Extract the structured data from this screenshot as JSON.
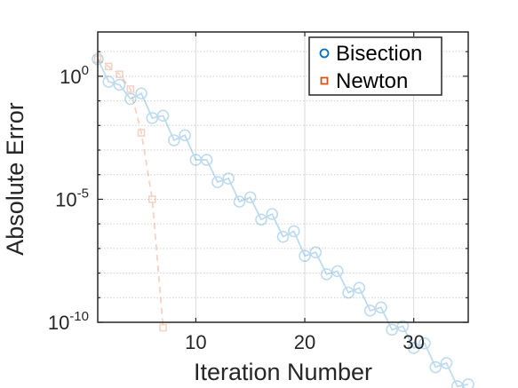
{
  "chart_data": {
    "type": "line",
    "xlabel": "Iteration Number",
    "ylabel": "Absolute Error",
    "xlim": [
      1,
      35
    ],
    "ylim_log10": [
      -10,
      1.8
    ],
    "yscale": "log",
    "grid": "on (x major solid, y minor dotted)",
    "legend_position": "top-right",
    "x_ticks": [
      10,
      20,
      30
    ],
    "x_tick_labels": [
      "10",
      "20",
      "30"
    ],
    "y_ticks_log10": [
      0,
      -5,
      -10
    ],
    "y_tick_labels": [
      {
        "base": "10",
        "exp": "0"
      },
      {
        "base": "10",
        "exp": "-5"
      },
      {
        "base": "10",
        "exp": "-10"
      }
    ],
    "series": [
      {
        "name": "Bisection",
        "color": "#0072BD",
        "marker": "circle",
        "line": "solid",
        "x": [
          1,
          2,
          3,
          4,
          5,
          6,
          7,
          8,
          9,
          10,
          11,
          12,
          13,
          14,
          15,
          16,
          17,
          18,
          19,
          20,
          21,
          22,
          23,
          24,
          25,
          26,
          27,
          28,
          29,
          30,
          31,
          32,
          33,
          34,
          35
        ],
        "y": [
          5,
          0.6,
          0.45,
          0.12,
          0.2,
          0.02,
          0.025,
          0.0025,
          0.004,
          0.0004,
          0.0004,
          5e-05,
          7e-05,
          8e-06,
          1.2e-05,
          1.5e-06,
          2.5e-06,
          3e-07,
          5e-07,
          5e-08,
          7e-08,
          9e-09,
          1.2e-08,
          1.6e-09,
          2.5e-09,
          3e-10,
          4e-10,
          5e-11,
          7e-11,
          9e-12,
          1.4e-11,
          1.5e-12,
          2.2e-12,
          2.5e-13,
          3e-13
        ]
      },
      {
        "name": "Newton",
        "color": "#D95319",
        "marker": "square",
        "line": "dashed",
        "x": [
          1,
          2,
          3,
          4,
          5,
          6,
          7
        ],
        "y": [
          5,
          2.5,
          1.2,
          0.3,
          0.005,
          1e-05,
          6e-11
        ]
      }
    ]
  }
}
